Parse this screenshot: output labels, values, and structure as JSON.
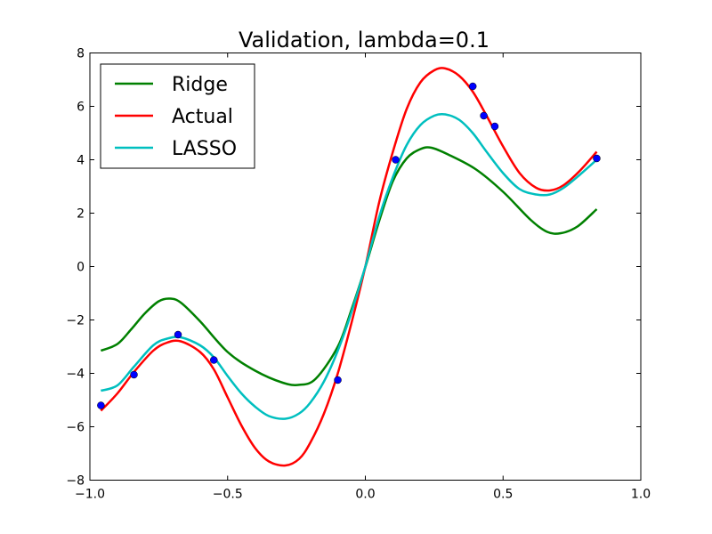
{
  "chart_data": {
    "type": "line",
    "title": "Validation, lambda=0.1",
    "xlabel": "",
    "ylabel": "",
    "xlim": [
      -1.0,
      1.0
    ],
    "ylim": [
      -8,
      8
    ],
    "xticks": [
      -1.0,
      -0.5,
      0.0,
      0.5,
      1.0
    ],
    "xtick_labels": [
      "−1.0",
      "−0.5",
      "0.0",
      "0.5",
      "1.0"
    ],
    "yticks": [
      -8,
      -6,
      -4,
      -2,
      0,
      2,
      4,
      6,
      8
    ],
    "ytick_labels": [
      "−8",
      "−6",
      "−4",
      "−2",
      "0",
      "2",
      "4",
      "6",
      "8"
    ],
    "grid": false,
    "legend_position": "top-left",
    "series": [
      {
        "name": "Ridge",
        "color": "#008000",
        "x": [
          -0.96,
          -0.9,
          -0.85,
          -0.8,
          -0.75,
          -0.71,
          -0.67,
          -0.6,
          -0.5,
          -0.4,
          -0.3,
          -0.24,
          -0.18,
          -0.1,
          -0.05,
          0.0,
          0.05,
          0.1,
          0.15,
          0.2,
          0.24,
          0.3,
          0.4,
          0.5,
          0.6,
          0.66,
          0.71,
          0.77,
          0.84
        ],
        "y": [
          -3.15,
          -2.9,
          -2.35,
          -1.75,
          -1.3,
          -1.2,
          -1.35,
          -2.05,
          -3.2,
          -3.9,
          -4.35,
          -4.43,
          -4.2,
          -3.0,
          -1.6,
          -0.02,
          1.7,
          3.2,
          4.05,
          4.4,
          4.45,
          4.2,
          3.65,
          2.8,
          1.75,
          1.3,
          1.25,
          1.5,
          2.15
        ]
      },
      {
        "name": "Actual",
        "color": "#ff0000",
        "x": [
          -0.96,
          -0.9,
          -0.84,
          -0.77,
          -0.72,
          -0.67,
          -0.6,
          -0.55,
          -0.5,
          -0.45,
          -0.4,
          -0.35,
          -0.29,
          -0.24,
          -0.2,
          -0.15,
          -0.1,
          -0.05,
          0.0,
          0.05,
          0.1,
          0.15,
          0.2,
          0.25,
          0.29,
          0.34,
          0.39,
          0.44,
          0.5,
          0.56,
          0.62,
          0.67,
          0.72,
          0.78,
          0.84
        ],
        "y": [
          -5.4,
          -4.75,
          -3.95,
          -3.15,
          -2.85,
          -2.8,
          -3.2,
          -3.85,
          -4.9,
          -5.95,
          -6.8,
          -7.3,
          -7.45,
          -7.2,
          -6.6,
          -5.5,
          -4.0,
          -2.1,
          0.0,
          2.4,
          4.3,
          5.9,
          6.9,
          7.35,
          7.42,
          7.15,
          6.55,
          5.65,
          4.5,
          3.5,
          2.95,
          2.85,
          3.05,
          3.6,
          4.3
        ]
      },
      {
        "name": "LASSO",
        "color": "#00bfbf",
        "x": [
          -0.96,
          -0.9,
          -0.84,
          -0.77,
          -0.72,
          -0.67,
          -0.6,
          -0.55,
          -0.5,
          -0.45,
          -0.4,
          -0.35,
          -0.29,
          -0.24,
          -0.2,
          -0.15,
          -0.1,
          -0.05,
          0.0,
          0.05,
          0.1,
          0.15,
          0.2,
          0.25,
          0.29,
          0.34,
          0.39,
          0.44,
          0.5,
          0.56,
          0.62,
          0.67,
          0.72,
          0.78,
          0.84
        ],
        "y": [
          -4.65,
          -4.45,
          -3.75,
          -2.95,
          -2.7,
          -2.65,
          -2.95,
          -3.4,
          -4.1,
          -4.75,
          -5.25,
          -5.6,
          -5.7,
          -5.5,
          -5.1,
          -4.3,
          -3.15,
          -1.7,
          0.0,
          1.85,
          3.35,
          4.55,
          5.3,
          5.65,
          5.7,
          5.5,
          5.0,
          4.3,
          3.5,
          2.9,
          2.7,
          2.7,
          2.95,
          3.45,
          4.0
        ]
      }
    ],
    "points": {
      "name": "data points",
      "color": "#0000ff",
      "x": [
        -0.96,
        -0.84,
        -0.68,
        -0.55,
        -0.1,
        0.11,
        0.39,
        0.43,
        0.47,
        0.84
      ],
      "y": [
        -5.2,
        -4.05,
        -2.55,
        -3.5,
        -4.25,
        4.0,
        6.75,
        5.65,
        5.25,
        4.05
      ]
    }
  }
}
